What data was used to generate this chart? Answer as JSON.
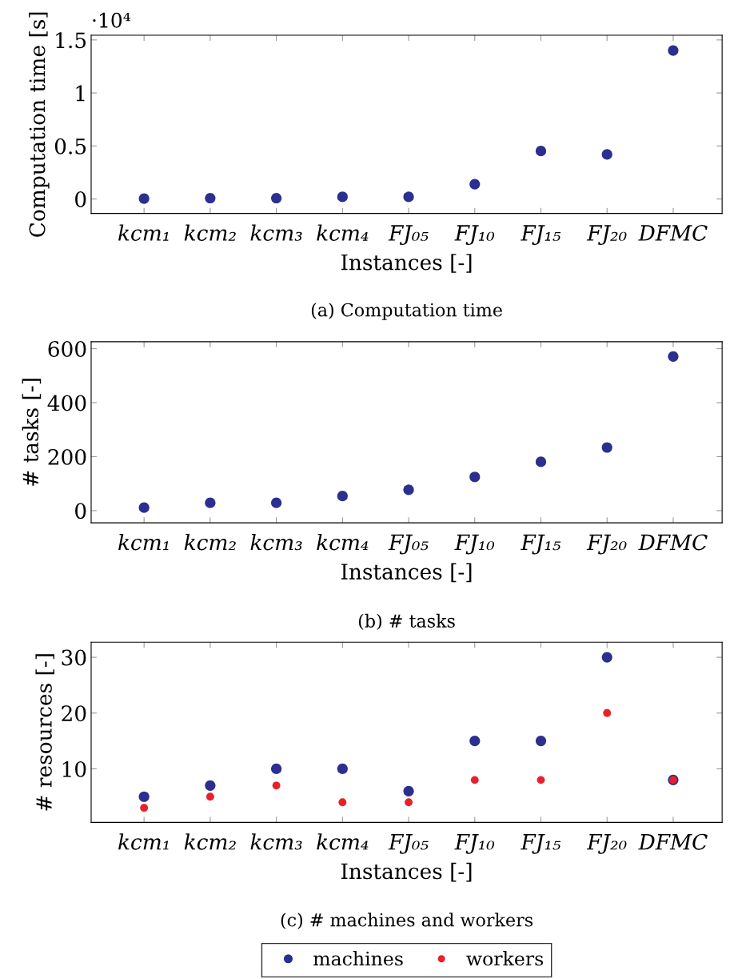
{
  "chart_data": [
    {
      "type": "scatter",
      "title": "(a) Computation time",
      "xlabel": "Instances [-]",
      "ylabel": "Computation time [s]",
      "categories": [
        "kcm₁",
        "kcm₂",
        "kcm₃",
        "kcm₄",
        "FJ₀₅",
        "FJ₁₀",
        "FJ₁₅",
        "FJ₂₀",
        "DFMC"
      ],
      "series": [
        {
          "color": "#2b2f8f",
          "values": [
            0.004,
            0.008,
            0.008,
            0.02,
            0.02,
            0.14,
            0.452,
            0.42,
            1.4
          ]
        }
      ],
      "ylim": [
        -0.136,
        1.544
      ],
      "yticks": [
        0,
        0.5,
        1,
        1.5
      ],
      "annotations": [
        "·10⁴"
      ],
      "marker": "circle",
      "grid": false
    },
    {
      "type": "scatter",
      "title": "(b) # tasks",
      "xlabel": "Instances [-]",
      "ylabel": "# tasks [-]",
      "categories": [
        "kcm₁",
        "kcm₂",
        "kcm₃",
        "kcm₄",
        "FJ₀₅",
        "FJ₁₀",
        "FJ₁₅",
        "FJ₂₀",
        "DFMC"
      ],
      "series": [
        {
          "color": "#2b2f8f",
          "values": [
            11,
            29,
            29,
            54,
            77,
            125,
            181,
            234,
            571
          ]
        }
      ],
      "ylim": [
        -45,
        626
      ],
      "yticks": [
        0,
        200,
        400,
        600
      ],
      "marker": "circle",
      "grid": false
    },
    {
      "type": "scatter",
      "title": "(c) # machines and workers",
      "xlabel": "Instances [-]",
      "ylabel": "# resources [-]",
      "categories": [
        "kcm₁",
        "kcm₂",
        "kcm₃",
        "kcm₄",
        "FJ₀₅",
        "FJ₁₀",
        "FJ₁₅",
        "FJ₂₀",
        "DFMC"
      ],
      "series": [
        {
          "name": "machines",
          "color": "#2b2f8f",
          "values": [
            5,
            7,
            10,
            10,
            6,
            15,
            15,
            30,
            8
          ]
        },
        {
          "name": "workers",
          "color": "#e8202a",
          "values": [
            3,
            5,
            7,
            4,
            4,
            8,
            8,
            20,
            8
          ]
        }
      ],
      "ylim": [
        0.4,
        32.7
      ],
      "yticks": [
        10,
        20,
        30
      ],
      "marker": "circle",
      "grid": false,
      "legend": "bottom"
    }
  ]
}
